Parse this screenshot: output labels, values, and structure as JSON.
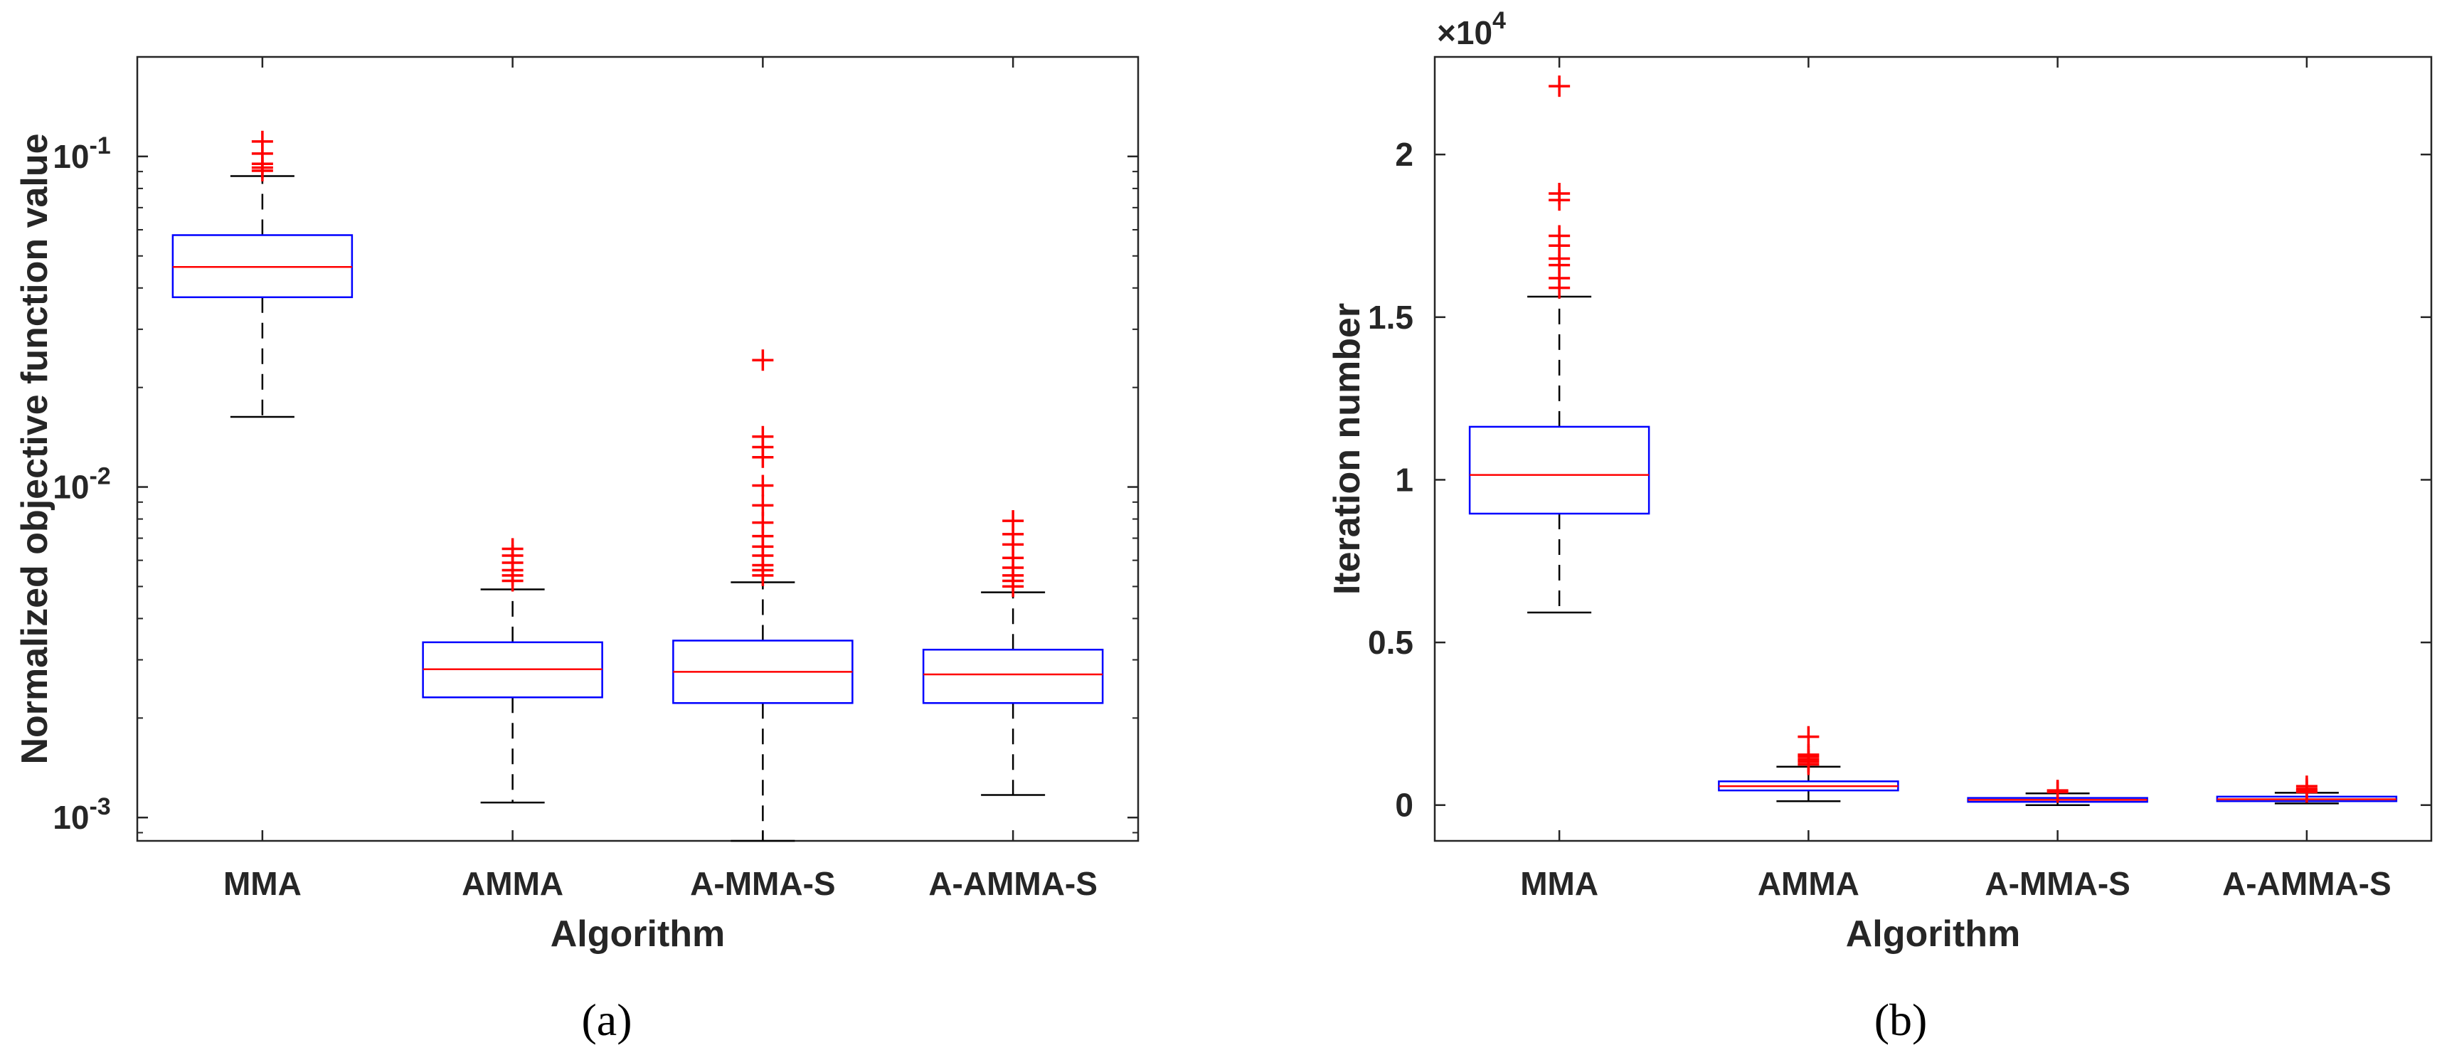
{
  "colors": {
    "box": "#0000ff",
    "median": "#ff0000",
    "outlier": "#ff0000",
    "whisker": "#000000",
    "axis": "#262626"
  },
  "chart_data": [
    {
      "type": "boxplot",
      "caption": "(a)",
      "xlabel": "Algorithm",
      "ylabel": "Normalized objective function value",
      "yscale": "log",
      "ylim": [
        0.00085,
        0.2
      ],
      "yticks": [
        {
          "value": 0.001,
          "base": "10",
          "exp": "-3"
        },
        {
          "value": 0.01,
          "base": "10",
          "exp": "-2"
        },
        {
          "value": 0.1,
          "base": "10",
          "exp": "-1"
        }
      ],
      "categories": [
        "MMA",
        "AMMA",
        "A-MMA-S",
        "A-AMMA-S"
      ],
      "boxes": [
        {
          "name": "MMA",
          "whisker_low": 0.0163,
          "q1": 0.0375,
          "median": 0.0463,
          "q3": 0.0578,
          "whisker_high": 0.0872,
          "outliers": [
            0.0905,
            0.0925,
            0.095,
            0.102,
            0.111
          ]
        },
        {
          "name": "AMMA",
          "whisker_low": 0.00111,
          "q1": 0.00231,
          "median": 0.00281,
          "q3": 0.00339,
          "whisker_high": 0.0049,
          "outliers": [
            0.0052,
            0.0054,
            0.0056,
            0.0059,
            0.0062,
            0.0065
          ]
        },
        {
          "name": "A-MMA-S",
          "whisker_low": 0.00085,
          "q1": 0.00222,
          "median": 0.00276,
          "q3": 0.00343,
          "whisker_high": 0.00515,
          "outliers": [
            0.0054,
            0.0056,
            0.0058,
            0.0062,
            0.0066,
            0.0071,
            0.0078,
            0.0088,
            0.0101,
            0.0123,
            0.0132,
            0.0142,
            0.0242
          ]
        },
        {
          "name": "A-AMMA-S",
          "whisker_low": 0.00117,
          "q1": 0.00222,
          "median": 0.00271,
          "q3": 0.00322,
          "whisker_high": 0.0048,
          "outliers": [
            0.005,
            0.0052,
            0.0054,
            0.0057,
            0.0061,
            0.0067,
            0.0072,
            0.0079
          ]
        }
      ]
    },
    {
      "type": "boxplot",
      "caption": "(b)",
      "xlabel": "Algorithm",
      "ylabel": "Iteration number",
      "yscale": "linear",
      "multiplier": "×10",
      "multiplier_exp": "4",
      "ylim": [
        -0.11,
        2.3
      ],
      "units": "×10^4",
      "yticks": [
        {
          "value": 0,
          "label": "0"
        },
        {
          "value": 0.5,
          "label": "0.5"
        },
        {
          "value": 1,
          "label": "1"
        },
        {
          "value": 1.5,
          "label": "1.5"
        },
        {
          "value": 2,
          "label": "2"
        }
      ],
      "categories": [
        "MMA",
        "AMMA",
        "A-MMA-S",
        "A-AMMA-S"
      ],
      "boxes": [
        {
          "name": "MMA",
          "whisker_low": 0.592,
          "q1": 0.896,
          "median": 1.015,
          "q3": 1.163,
          "whisker_high": 1.563,
          "outliers": [
            1.59,
            1.62,
            1.66,
            1.68,
            1.72,
            1.75,
            1.86,
            1.88,
            2.21
          ]
        },
        {
          "name": "AMMA",
          "whisker_low": 0.012,
          "q1": 0.045,
          "median": 0.058,
          "q3": 0.073,
          "whisker_high": 0.118,
          "outliers": [
            0.125,
            0.133,
            0.14,
            0.148,
            0.155,
            0.21
          ]
        },
        {
          "name": "A-MMA-S",
          "whisker_low": 0.0,
          "q1": 0.01,
          "median": 0.016,
          "q3": 0.022,
          "whisker_high": 0.036,
          "outliers": [
            0.04,
            0.045
          ]
        },
        {
          "name": "A-AMMA-S",
          "whisker_low": 0.005,
          "q1": 0.012,
          "median": 0.018,
          "q3": 0.026,
          "whisker_high": 0.038,
          "outliers": [
            0.04,
            0.045,
            0.05,
            0.058
          ]
        }
      ]
    }
  ]
}
